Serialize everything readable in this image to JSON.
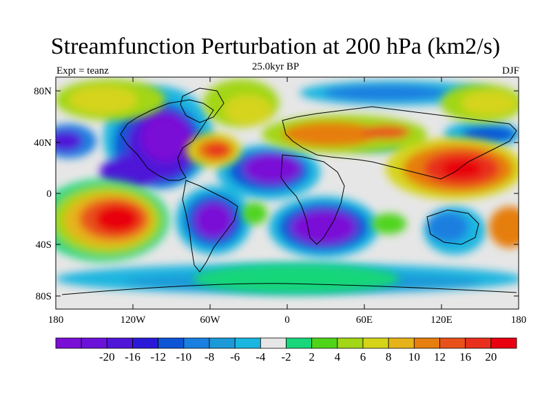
{
  "title": "Streamfunction Perturbation at 200 hPa (km2/s)",
  "subtitle": "25.0kyr BP",
  "left_label": "Expt = teanz",
  "right_label": "DJF",
  "lat_labels": [
    "80N",
    "40N",
    "0",
    "40S",
    "80S"
  ],
  "lon_labels": [
    "180",
    "120W",
    "60W",
    "0",
    "60E",
    "120E",
    "180"
  ],
  "colorbar": {
    "colors": [
      "#7a0ed6",
      "#6a12d8",
      "#5016d8",
      "#2a1ad8",
      "#0e55d6",
      "#1a7fe0",
      "#1c9ad8",
      "#1ab6e0",
      "#e6e6e6",
      "#18d67a",
      "#50d41a",
      "#a2d616",
      "#d6d41a",
      "#e6b41a",
      "#e67e10",
      "#e8521a",
      "#e8301c",
      "#e80010"
    ],
    "labels": [
      "-20",
      "-16",
      "-12",
      "-10",
      "-8",
      "-6",
      "-4",
      "-2",
      "2",
      "4",
      "6",
      "8",
      "10",
      "12",
      "16",
      "20"
    ]
  }
}
